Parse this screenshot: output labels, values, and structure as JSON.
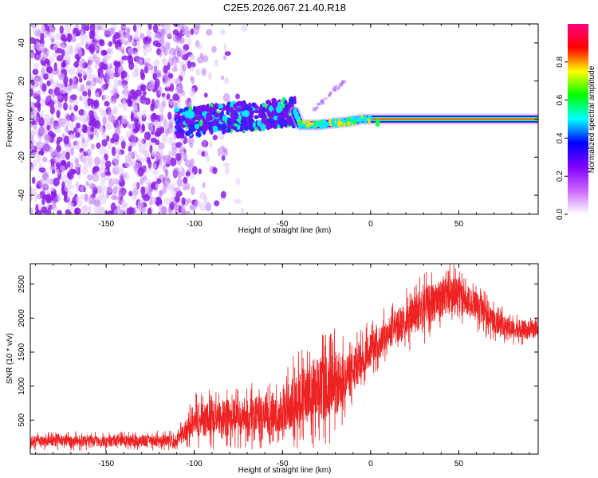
{
  "title": "C2E5.2026.067.21.40.R18",
  "chart_data": [
    {
      "type": "heatmap",
      "xlabel": "Height of straight line (km)",
      "ylabel": "Frequency (Hz)",
      "xlim": [
        -193,
        95
      ],
      "ylim": [
        -50,
        50
      ],
      "xticks": [
        -150,
        -100,
        -50,
        0,
        50
      ],
      "yticks": [
        -40,
        -20,
        0,
        20,
        40
      ],
      "colorbar": {
        "label": "Normalized spectral amplitude",
        "range": [
          0,
          1
        ],
        "ticks": [
          "0.0",
          "0.2",
          "0.4",
          "0.6",
          "0.8"
        ],
        "colors": [
          "#ffffff",
          "#cc66ff",
          "#7f00ff",
          "#0000ff",
          "#00ffff",
          "#00ff00",
          "#ffff00",
          "#ff0000",
          "#ff0080"
        ]
      },
      "noise_region_km": [
        -193,
        -110
      ],
      "scattered_signal_region_km": [
        -110,
        -43
      ],
      "converged_signal_region_km": [
        -43,
        95
      ],
      "signal_center_hz": [
        {
          "x": -105,
          "y": -2
        },
        {
          "x": -90,
          "y": 0
        },
        {
          "x": -80,
          "y": 1
        },
        {
          "x": -70,
          "y": 1
        },
        {
          "x": -55,
          "y": 3
        },
        {
          "x": -43,
          "y": 4
        },
        {
          "x": -40,
          "y": -3
        },
        {
          "x": -30,
          "y": -3
        },
        {
          "x": -20,
          "y": -2
        },
        {
          "x": -10,
          "y": -1
        },
        {
          "x": -5,
          "y": 0
        },
        {
          "x": 0,
          "y": 0
        },
        {
          "x": 5,
          "y": 0
        },
        {
          "x": 95,
          "y": 0
        }
      ],
      "spike": {
        "x": 4,
        "y": -2
      },
      "spur_line": [
        {
          "x": -33,
          "y": 4
        },
        {
          "x": -20,
          "y": 16
        },
        {
          "x": -14,
          "y": 20
        }
      ]
    },
    {
      "type": "line",
      "xlabel": "Height of straight line (km)",
      "ylabel": "SNR (10 * v/v)",
      "xlim": [
        -193,
        95
      ],
      "ylim": [
        0,
        2800
      ],
      "xticks": [
        -150,
        -100,
        -50,
        0,
        50
      ],
      "yticks": [
        500,
        1000,
        1500,
        2000,
        2500
      ],
      "series": [
        {
          "name": "SNR",
          "color": "#ee2222",
          "envelope": [
            {
              "x": -193,
              "lo": 50,
              "hi": 330
            },
            {
              "x": -150,
              "lo": 50,
              "hi": 330
            },
            {
              "x": -110,
              "lo": 50,
              "hi": 350
            },
            {
              "x": -100,
              "lo": 50,
              "hi": 900
            },
            {
              "x": -90,
              "lo": 50,
              "hi": 1000
            },
            {
              "x": -70,
              "lo": 60,
              "hi": 1050
            },
            {
              "x": -50,
              "lo": 60,
              "hi": 1200
            },
            {
              "x": -35,
              "lo": 80,
              "hi": 1800
            },
            {
              "x": -20,
              "lo": 150,
              "hi": 1900
            },
            {
              "x": -10,
              "lo": 650,
              "hi": 1750
            },
            {
              "x": 0,
              "lo": 1100,
              "hi": 2000
            },
            {
              "x": 10,
              "lo": 1350,
              "hi": 2200
            },
            {
              "x": 20,
              "lo": 1500,
              "hi": 2450
            },
            {
              "x": 30,
              "lo": 1600,
              "hi": 2700
            },
            {
              "x": 40,
              "lo": 1800,
              "hi": 2800
            },
            {
              "x": 50,
              "lo": 1900,
              "hi": 2800
            },
            {
              "x": 60,
              "lo": 1750,
              "hi": 2550
            },
            {
              "x": 70,
              "lo": 1650,
              "hi": 2250
            },
            {
              "x": 80,
              "lo": 1600,
              "hi": 2100
            },
            {
              "x": 95,
              "lo": 1600,
              "hi": 2050
            }
          ]
        }
      ]
    }
  ]
}
